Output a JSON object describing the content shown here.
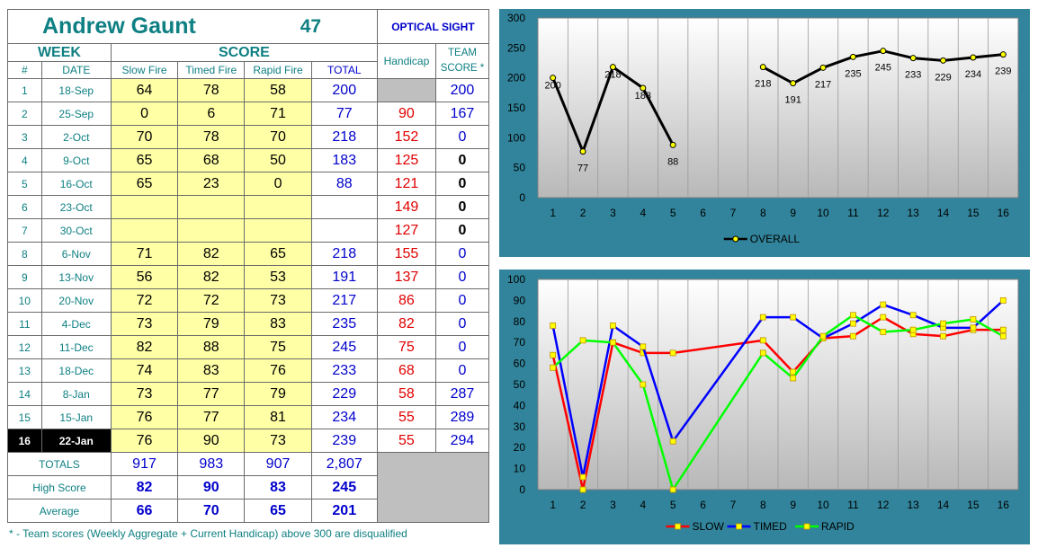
{
  "header": {
    "name": "Andrew Gaunt",
    "number": "47",
    "sight": "OPTICAL SIGHT",
    "week": "WEEK",
    "score": "SCORE",
    "handicap": "Handicap",
    "team_score_1": "TEAM",
    "team_score_2": "SCORE *",
    "col_num": "#",
    "col_date": "DATE",
    "col_slow": "Slow Fire",
    "col_timed": "Timed Fire",
    "col_rapid": "Rapid Fire",
    "col_total": "TOTAL"
  },
  "rows": [
    {
      "num": "1",
      "date": "18-Sep",
      "slow": "64",
      "timed": "78",
      "rapid": "58",
      "total": "200",
      "hc": "",
      "team": "200",
      "team_style": "blue"
    },
    {
      "num": "2",
      "date": "25-Sep",
      "slow": "0",
      "timed": "6",
      "rapid": "71",
      "total": "77",
      "hc": "90",
      "team": "167",
      "team_style": "blue"
    },
    {
      "num": "3",
      "date": "2-Oct",
      "slow": "70",
      "timed": "78",
      "rapid": "70",
      "total": "218",
      "hc": "152",
      "team": "0",
      "team_style": "blue"
    },
    {
      "num": "4",
      "date": "9-Oct",
      "slow": "65",
      "timed": "68",
      "rapid": "50",
      "total": "183",
      "hc": "125",
      "team": "0",
      "team_style": "black"
    },
    {
      "num": "5",
      "date": "16-Oct",
      "slow": "65",
      "timed": "23",
      "rapid": "0",
      "total": "88",
      "hc": "121",
      "team": "0",
      "team_style": "black"
    },
    {
      "num": "6",
      "date": "23-Oct",
      "slow": "",
      "timed": "",
      "rapid": "",
      "total": "",
      "hc": "149",
      "team": "0",
      "team_style": "black"
    },
    {
      "num": "7",
      "date": "30-Oct",
      "slow": "",
      "timed": "",
      "rapid": "",
      "total": "",
      "hc": "127",
      "team": "0",
      "team_style": "black"
    },
    {
      "num": "8",
      "date": "6-Nov",
      "slow": "71",
      "timed": "82",
      "rapid": "65",
      "total": "218",
      "hc": "155",
      "team": "0",
      "team_style": "blue"
    },
    {
      "num": "9",
      "date": "13-Nov",
      "slow": "56",
      "timed": "82",
      "rapid": "53",
      "total": "191",
      "hc": "137",
      "team": "0",
      "team_style": "blue"
    },
    {
      "num": "10",
      "date": "20-Nov",
      "slow": "72",
      "timed": "72",
      "rapid": "73",
      "total": "217",
      "hc": "86",
      "team": "0",
      "team_style": "blue"
    },
    {
      "num": "11",
      "date": "4-Dec",
      "slow": "73",
      "timed": "79",
      "rapid": "83",
      "total": "235",
      "hc": "82",
      "team": "0",
      "team_style": "blue"
    },
    {
      "num": "12",
      "date": "11-Dec",
      "slow": "82",
      "timed": "88",
      "rapid": "75",
      "total": "245",
      "hc": "75",
      "team": "0",
      "team_style": "blue"
    },
    {
      "num": "13",
      "date": "18-Dec",
      "slow": "74",
      "timed": "83",
      "rapid": "76",
      "total": "233",
      "hc": "68",
      "team": "0",
      "team_style": "blue"
    },
    {
      "num": "14",
      "date": "8-Jan",
      "slow": "73",
      "timed": "77",
      "rapid": "79",
      "total": "229",
      "hc": "58",
      "team": "287",
      "team_style": "blue"
    },
    {
      "num": "15",
      "date": "15-Jan",
      "slow": "76",
      "timed": "77",
      "rapid": "81",
      "total": "234",
      "hc": "55",
      "team": "289",
      "team_style": "blue"
    },
    {
      "num": "16",
      "date": "22-Jan",
      "slow": "76",
      "timed": "90",
      "rapid": "73",
      "total": "239",
      "hc": "55",
      "team": "294",
      "team_style": "blue",
      "current": true
    }
  ],
  "totals": {
    "label": "TOTALS",
    "slow": "917",
    "timed": "983",
    "rapid": "907",
    "total": "2,807"
  },
  "high": {
    "label": "High Score",
    "slow": "82",
    "timed": "90",
    "rapid": "83",
    "total": "245"
  },
  "average": {
    "label": "Average",
    "slow": "66",
    "timed": "70",
    "rapid": "65",
    "total": "201"
  },
  "footnote": "* - Team scores (Weekly Aggregate + Current Handicap) above 300 are disqualified",
  "colors": {
    "teal": "#0e7f82",
    "frame": "#31849b",
    "slow": "#ff0000",
    "timed": "#0000ff",
    "rapid": "#00ff00",
    "marker": "#ffff00"
  },
  "chart_data": [
    {
      "type": "line",
      "categories": [
        "1",
        "2",
        "3",
        "4",
        "5",
        "6",
        "7",
        "8",
        "9",
        "10",
        "11",
        "12",
        "13",
        "14",
        "15",
        "16"
      ],
      "ylim": [
        0,
        300
      ],
      "yticks": [
        "0",
        "50",
        "100",
        "150",
        "200",
        "250",
        "300"
      ],
      "series": [
        {
          "name": "OVERALL",
          "values": [
            200,
            77,
            218,
            183,
            88,
            null,
            null,
            218,
            191,
            217,
            235,
            245,
            233,
            229,
            234,
            239
          ]
        }
      ],
      "data_labels": [
        "200",
        "77",
        "218",
        "183",
        "88",
        "",
        "",
        "218",
        "191",
        "217",
        "235",
        "245",
        "233",
        "229",
        "234",
        "239"
      ],
      "legend": "bottom",
      "grid": true
    },
    {
      "type": "line",
      "categories": [
        "1",
        "2",
        "3",
        "4",
        "5",
        "6",
        "7",
        "8",
        "9",
        "10",
        "11",
        "12",
        "13",
        "14",
        "15",
        "16"
      ],
      "ylim": [
        0,
        100
      ],
      "yticks": [
        "0",
        "10",
        "20",
        "30",
        "40",
        "50",
        "60",
        "70",
        "80",
        "90",
        "100"
      ],
      "series": [
        {
          "name": "SLOW",
          "values": [
            64,
            0,
            70,
            65,
            65,
            null,
            null,
            71,
            56,
            72,
            73,
            82,
            74,
            73,
            76,
            76
          ]
        },
        {
          "name": "TIMED",
          "values": [
            78,
            6,
            78,
            68,
            23,
            null,
            null,
            82,
            82,
            72,
            79,
            88,
            83,
            77,
            77,
            90
          ]
        },
        {
          "name": "RAPID",
          "values": [
            58,
            71,
            70,
            50,
            0,
            null,
            null,
            65,
            53,
            73,
            83,
            75,
            76,
            79,
            81,
            73
          ]
        }
      ],
      "legend": "bottom",
      "grid": true
    }
  ]
}
